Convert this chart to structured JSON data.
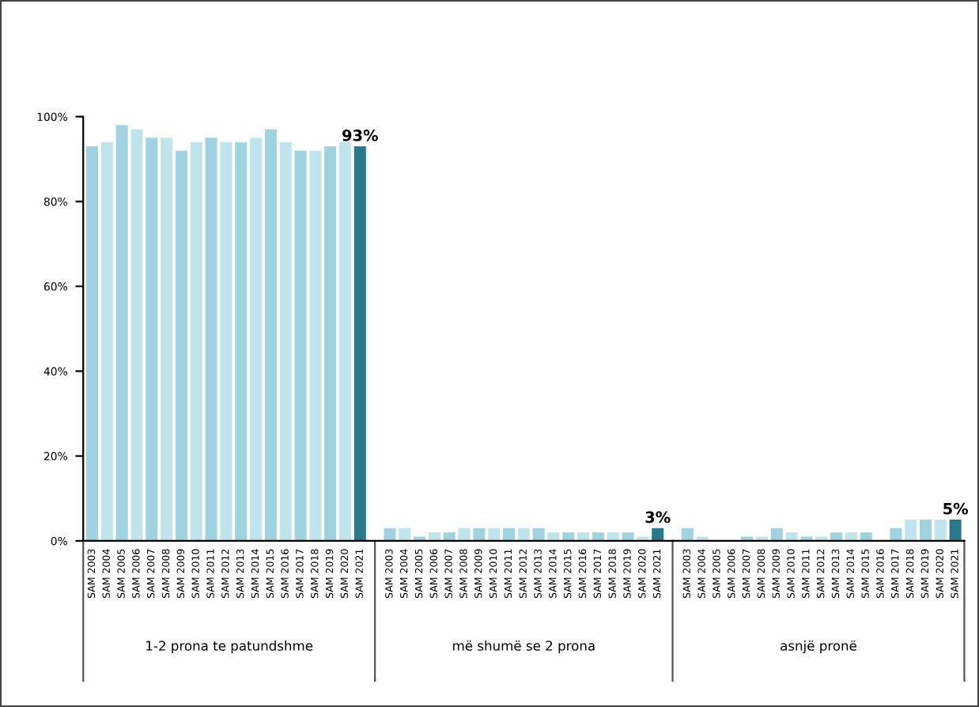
{
  "chart_data": {
    "type": "bar",
    "categories": [
      "SAM 2003",
      "SAM 2004",
      "SAM 2005",
      "SAM 2006",
      "SAM 2007",
      "SAM 2008",
      "SAM 2009",
      "SAM 2010",
      "SAM 2011",
      "SAM 2012",
      "SAM 2013",
      "SAM 2014",
      "SAM 2015",
      "SAM 2016",
      "SAM 2017",
      "SAM 2018",
      "SAM 2019",
      "SAM 2020",
      "SAM 2021",
      null,
      "SAM 2003",
      "SAM 2004",
      "SAM 2005",
      "SAM 2006",
      "SAM 2007",
      "SAM 2008",
      "SAM 2009",
      "SAM 2010",
      "SAM 2011",
      "SAM 2012",
      "SAM 2013",
      "SAM 2014",
      "SAM 2015",
      "SAM 2016",
      "SAM 2017",
      "SAM 2018",
      "SAM 2019",
      "SAM 2020",
      "SAM 2021",
      null,
      "SAM 2003",
      "SAM 2004",
      "SAM 2005",
      "SAM 2006",
      "SAM 2007",
      "SAM 2008",
      "SAM 2009",
      "SAM 2010",
      "SAM 2011",
      "SAM 2012",
      "SAM 2013",
      "SAM 2014",
      "SAM 2015",
      "SAM 2016",
      "SAM 2017",
      "SAM 2018",
      "SAM 2019",
      "SAM 2020",
      "SAM 2021"
    ],
    "values": [
      93,
      94,
      98,
      97,
      95,
      95,
      92,
      94,
      95,
      94,
      94,
      95,
      97,
      94,
      92,
      92,
      93,
      94,
      93,
      null,
      3,
      3,
      1,
      2,
      2,
      3,
      3,
      3,
      3,
      3,
      3,
      2,
      2,
      2,
      2,
      2,
      2,
      1,
      3,
      null,
      3,
      1,
      0,
      0,
      1,
      1,
      3,
      2,
      1,
      1,
      2,
      2,
      2,
      0,
      3,
      5,
      5,
      5,
      5
    ],
    "colors": [
      "#9fd3df",
      "#bfe4ec",
      "#9fd3df",
      "#bfe4ec",
      "#9fd3df",
      "#bfe4ec",
      "#9fd3df",
      "#bfe4ec",
      "#9fd3df",
      "#bfe4ec",
      "#9fd3df",
      "#bfe4ec",
      "#9fd3df",
      "#bfe4ec",
      "#9fd3df",
      "#bfe4ec",
      "#9fd3df",
      "#bfe4ec",
      "#2b7a8c",
      null,
      "#9fd3df",
      "#bfe4ec",
      "#9fd3df",
      "#bfe4ec",
      "#9fd3df",
      "#bfe4ec",
      "#9fd3df",
      "#bfe4ec",
      "#9fd3df",
      "#bfe4ec",
      "#9fd3df",
      "#bfe4ec",
      "#9fd3df",
      "#bfe4ec",
      "#9fd3df",
      "#bfe4ec",
      "#9fd3df",
      "#bfe4ec",
      "#2b7a8c",
      null,
      "#9fd3df",
      "#bfe4ec",
      "#9fd3df",
      "#bfe4ec",
      "#9fd3df",
      "#bfe4ec",
      "#9fd3df",
      "#bfe4ec",
      "#9fd3df",
      "#bfe4ec",
      "#9fd3df",
      "#bfe4ec",
      "#9fd3df",
      "#bfe4ec",
      "#9fd3df",
      "#bfe4ec",
      "#9fd3df",
      "#bfe4ec",
      "#2b7a8c"
    ],
    "value_labels": [
      null,
      null,
      null,
      null,
      null,
      null,
      null,
      null,
      null,
      null,
      null,
      null,
      null,
      null,
      null,
      null,
      null,
      null,
      "93%",
      null,
      null,
      null,
      null,
      null,
      null,
      null,
      null,
      null,
      null,
      null,
      null,
      null,
      null,
      null,
      null,
      null,
      null,
      null,
      "3%",
      null,
      null,
      null,
      null,
      null,
      null,
      null,
      null,
      null,
      null,
      null,
      null,
      null,
      null,
      null,
      null,
      null,
      null,
      null,
      "5%"
    ],
    "ylim": [
      0,
      100
    ],
    "yticks": [
      {
        "value": 0,
        "label": "0%"
      },
      {
        "value": 20,
        "label": "20%"
      },
      {
        "value": 40,
        "label": "40%"
      },
      {
        "value": 60,
        "label": "60%"
      },
      {
        "value": 80,
        "label": "80%"
      },
      {
        "value": 100,
        "label": "100%"
      }
    ],
    "annotations": [
      "1-2 prona te patundshme",
      "më shumë se 2 prona",
      "asnjë pronë"
    ],
    "grid": false,
    "legend": false
  }
}
